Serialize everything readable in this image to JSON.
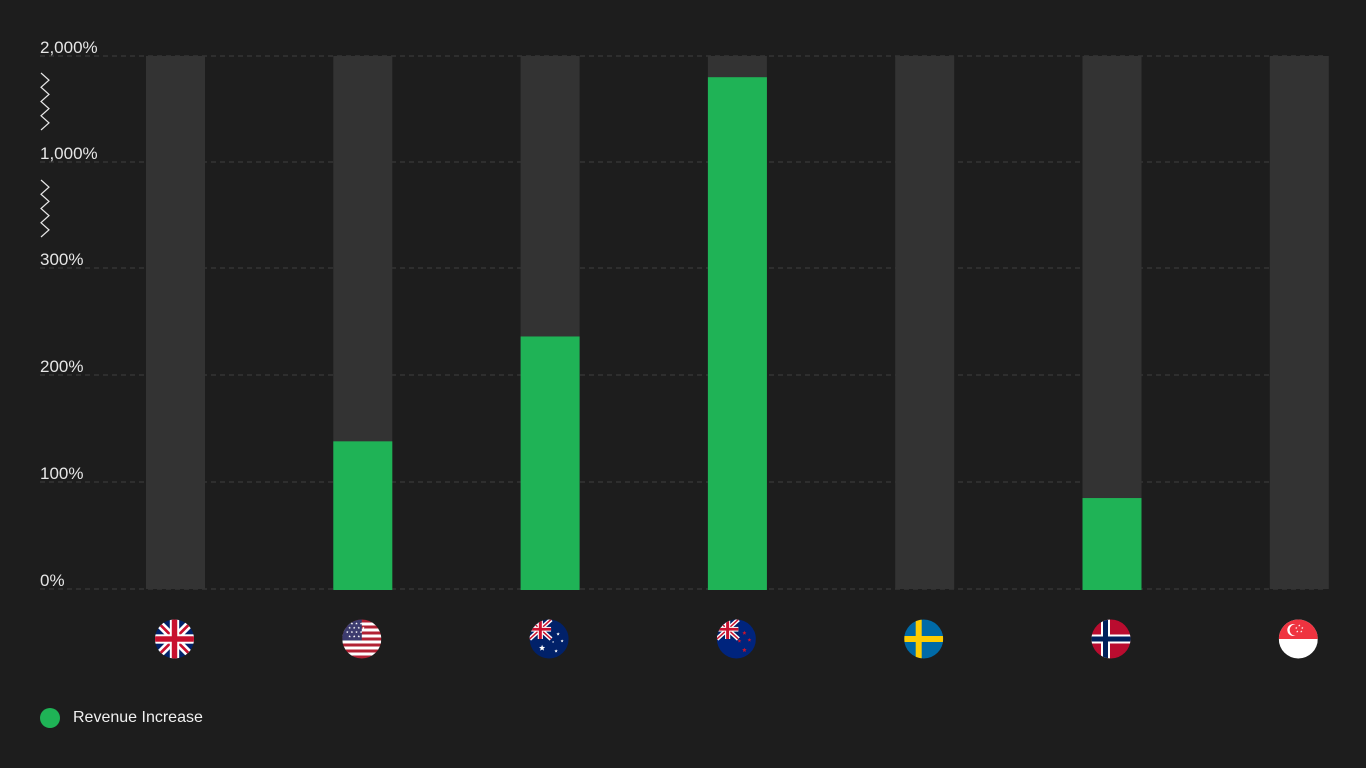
{
  "chart_data": {
    "type": "bar",
    "categories": [
      "United Kingdom",
      "United States",
      "Australia",
      "New Zealand",
      "Sweden",
      "Norway",
      "Singapore"
    ],
    "category_flags": [
      "gb-flag-icon",
      "us-flag-icon",
      "au-flag-icon",
      "nz-flag-icon",
      "se-flag-icon",
      "no-flag-icon",
      "sg-flag-icon"
    ],
    "series": [
      {
        "name": "Revenue Increase",
        "values": [
          0,
          138,
          236,
          1800,
          0,
          85,
          0
        ]
      }
    ],
    "y_ticks": [
      {
        "value": 0,
        "label": "0%"
      },
      {
        "value": 100,
        "label": "100%"
      },
      {
        "value": 200,
        "label": "200%"
      },
      {
        "value": 300,
        "label": "300%"
      },
      {
        "value": 1000,
        "label": "1,000%"
      },
      {
        "value": 2000,
        "label": "2,000%"
      }
    ],
    "y_axis_break": true,
    "ylim": [
      0,
      2000
    ],
    "grid": true,
    "legend_position": "bottom-left"
  },
  "colors": {
    "background": "#1d1d1d",
    "bar": "#1fb356",
    "track": "#333333",
    "text": "#e6e6e6",
    "grid": "#3f3f3f"
  }
}
